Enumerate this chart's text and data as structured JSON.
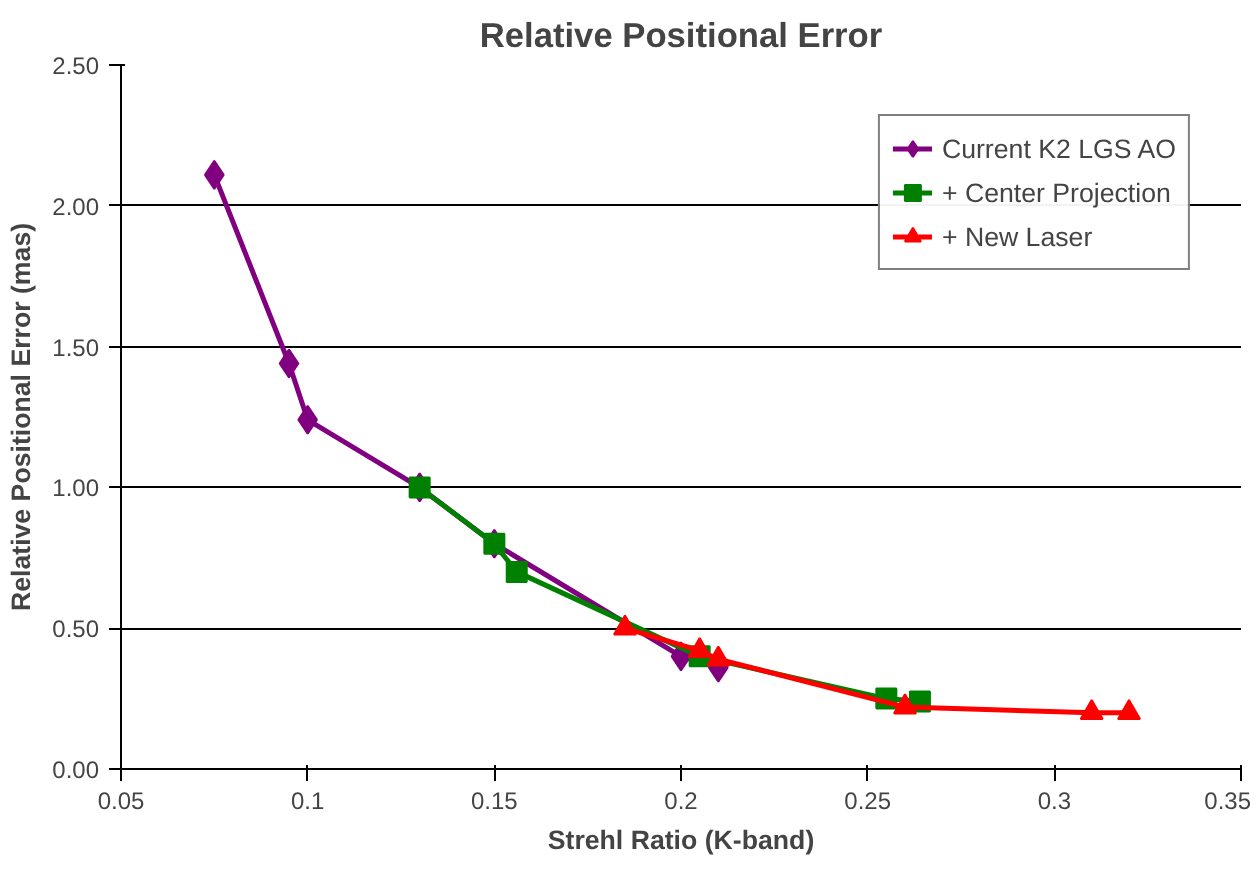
{
  "chart_data": {
    "type": "line",
    "title": "Relative Positional Error",
    "xlabel": "Strehl Ratio (K-band)",
    "ylabel": "Relative Positional Error (mas)",
    "xlim": [
      0.05,
      0.35
    ],
    "xticks": [
      0.05,
      0.1,
      0.15,
      0.2,
      0.25,
      0.3,
      0.35
    ],
    "ylim": [
      0,
      2.5
    ],
    "yticks": [
      {
        "value": 0,
        "label": "0.00"
      },
      {
        "value": 0.5,
        "label": "0.50"
      },
      {
        "value": 1,
        "label": "1.00"
      },
      {
        "value": 1.5,
        "label": "1.50"
      },
      {
        "value": 2,
        "label": "2.00"
      },
      {
        "value": 2.5,
        "label": "2.50"
      }
    ],
    "grid": "y",
    "legend": "top right",
    "series": [
      {
        "name": "Current K2 LGS AO",
        "color": "#800080",
        "marker": "diamond",
        "x": [
          0.075,
          0.095,
          0.1,
          0.13,
          0.15,
          0.2,
          0.21
        ],
        "values": [
          2.11,
          1.44,
          1.24,
          1.0,
          0.8,
          0.4,
          0.36
        ]
      },
      {
        "name": "+ Center Projection",
        "color": "#008000",
        "marker": "square",
        "x": [
          0.13,
          0.15,
          0.156,
          0.205,
          0.255,
          0.264
        ],
        "values": [
          1.0,
          0.8,
          0.7,
          0.4,
          0.25,
          0.24
        ]
      },
      {
        "name": "+ New Laser",
        "color": "#ff0000",
        "marker": "triangle",
        "x": [
          0.185,
          0.205,
          0.21,
          0.26,
          0.31,
          0.32
        ],
        "values": [
          0.5,
          0.42,
          0.39,
          0.22,
          0.2,
          0.2
        ]
      }
    ]
  }
}
